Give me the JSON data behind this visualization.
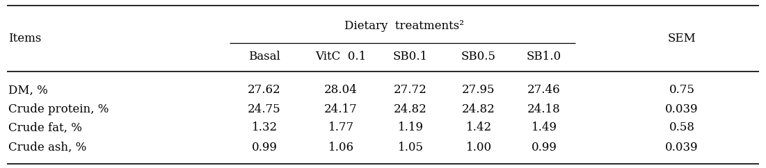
{
  "header_group": "Dietary  treatments²",
  "sub_headers": [
    "Basal",
    "VitC  0.1",
    "SB0.1",
    "SB0.5",
    "SB1.0"
  ],
  "col_items": "Items",
  "col_sem": "SEM",
  "rows": [
    {
      "item": "DM, %",
      "values": [
        "27.62",
        "28.04",
        "27.72",
        "27.95",
        "27.46"
      ],
      "sem": "0.75"
    },
    {
      "item": "Crude protein, %",
      "values": [
        "24.75",
        "24.17",
        "24.82",
        "24.82",
        "24.18"
      ],
      "sem": "0.039"
    },
    {
      "item": "Crude fat, %",
      "values": [
        "1.32",
        "1.77",
        "1.19",
        "1.42",
        "1.49"
      ],
      "sem": "0.58"
    },
    {
      "item": "Crude ash, %",
      "values": [
        "0.99",
        "1.06",
        "1.05",
        "1.00",
        "0.99"
      ],
      "sem": "0.039"
    }
  ],
  "font_size": 12,
  "font_family": "serif",
  "bg_color": "#ffffff",
  "text_color": "#000000",
  "fig_width": 11.01,
  "fig_height": 2.42,
  "dpi": 100
}
